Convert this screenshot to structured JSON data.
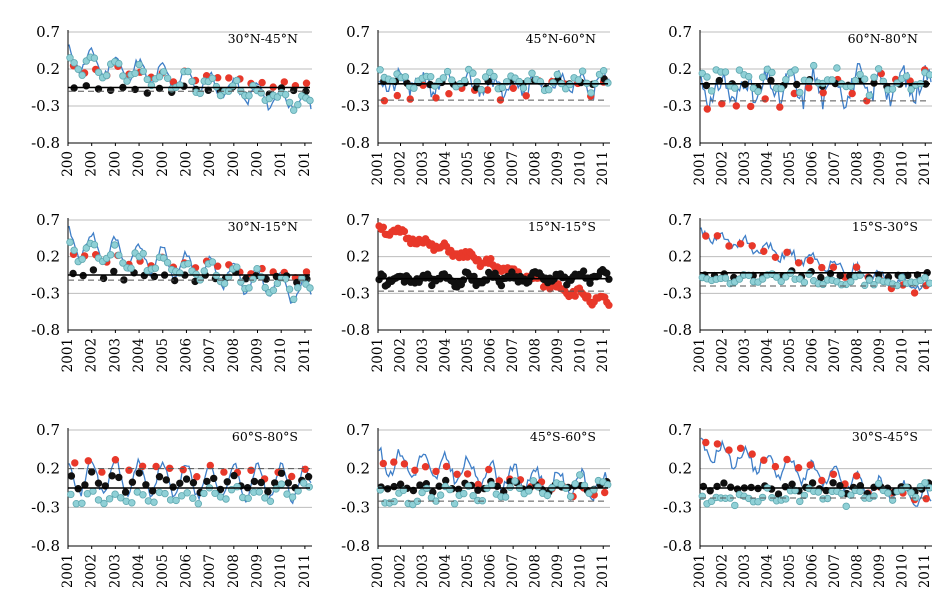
{
  "figure": {
    "title": ""
  },
  "colors": {
    "gridline": "#bdbdbd",
    "axis": "#000000",
    "line_series": "#3f7fc8",
    "red_points": "#e8382a",
    "black_points": "#111111",
    "cyan_points": "#8fd0d6",
    "black_line": "#000000",
    "dashed_line": "#555555"
  },
  "chart_data": [
    {
      "type": "scatter",
      "title": "30°N-45°N",
      "yticks": [
        "0.7",
        "0.2",
        "-0.3",
        "-0.8"
      ],
      "ylim": [
        -0.8,
        0.7
      ],
      "xticks": [
        "200",
        "200",
        "200",
        "200",
        "200",
        "200",
        "200",
        "200",
        "200",
        "201",
        "201"
      ],
      "xlim": [
        2001,
        2011.3
      ],
      "series": [
        {
          "marker": "line",
          "start": 0.35,
          "end": -0.28,
          "amp": 0.14,
          "noise": 0.06,
          "seed": 11
        },
        {
          "marker": "red",
          "start": 0.22,
          "end": -0.05,
          "amp": 0.05,
          "noise": 0.05,
          "n": 22,
          "seed": 12
        },
        {
          "marker": "black",
          "start": -0.06,
          "end": -0.1,
          "amp": 0.03,
          "noise": 0.04,
          "n": 20,
          "seed": 13
        },
        {
          "marker": "cyan",
          "start": 0.28,
          "end": -0.25,
          "amp": 0.1,
          "noise": 0.06,
          "n": 60,
          "seed": 14
        },
        {
          "marker": "flat",
          "value": -0.05
        },
        {
          "marker": "dash",
          "value": -0.1
        }
      ]
    },
    {
      "type": "scatter",
      "title": "45°N-60°N",
      "yticks": [
        "0.7",
        "0.2",
        "-0.3",
        "-0.8"
      ],
      "ylim": [
        -0.8,
        0.7
      ],
      "xticks": [
        "2001",
        "2002",
        "2003",
        "2004",
        "2005",
        "2006",
        "2007",
        "2008",
        "2009",
        "2010",
        "2011"
      ],
      "xlim": [
        2001,
        2011.3
      ],
      "series": [
        {
          "marker": "line",
          "start": 0.0,
          "end": 0.0,
          "amp": 0.1,
          "noise": 0.12,
          "seed": 21
        },
        {
          "marker": "red",
          "start": -0.15,
          "end": 0.0,
          "amp": 0.08,
          "noise": 0.08,
          "n": 18,
          "seed": 22
        },
        {
          "marker": "black",
          "start": 0.0,
          "end": 0.0,
          "amp": 0.03,
          "noise": 0.04,
          "n": 20,
          "seed": 23
        },
        {
          "marker": "cyan",
          "start": 0.08,
          "end": 0.02,
          "amp": 0.08,
          "noise": 0.08,
          "n": 55,
          "seed": 24
        },
        {
          "marker": "flat",
          "value": 0.0
        },
        {
          "marker": "dash",
          "value": -0.22
        }
      ]
    },
    {
      "type": "scatter",
      "title": "60°N-80°N",
      "yticks": [
        "0.7",
        "0.2",
        "-0.3",
        "-0.8"
      ],
      "ylim": [
        -0.8,
        0.7
      ],
      "xticks": [
        "2001",
        "2002",
        "2003",
        "2004",
        "2005",
        "2006",
        "2007",
        "2008",
        "2009",
        "2010",
        "2011"
      ],
      "xlim": [
        2001,
        2011.3
      ],
      "series": [
        {
          "marker": "line",
          "start": -0.1,
          "end": 0.0,
          "amp": 0.18,
          "noise": 0.16,
          "seed": 31
        },
        {
          "marker": "red",
          "start": -0.3,
          "end": 0.05,
          "amp": 0.1,
          "noise": 0.1,
          "n": 16,
          "seed": 32
        },
        {
          "marker": "black",
          "start": 0.0,
          "end": 0.0,
          "amp": 0.03,
          "noise": 0.04,
          "n": 18,
          "seed": 33
        },
        {
          "marker": "cyan",
          "start": 0.12,
          "end": 0.0,
          "amp": 0.12,
          "noise": 0.1,
          "n": 50,
          "seed": 34
        },
        {
          "marker": "flat",
          "value": 0.0
        },
        {
          "marker": "dash",
          "value": -0.23
        }
      ]
    },
    {
      "type": "scatter",
      "title": "30°N-15°N",
      "yticks": [
        "0.7",
        "0.2",
        "-0.3",
        "-0.8"
      ],
      "ylim": [
        -0.8,
        0.7
      ],
      "xticks": [
        "2001",
        "2002",
        "2003",
        "2004",
        "2005",
        "2006",
        "2007",
        "2008",
        "2009",
        "2010",
        "2011"
      ],
      "xlim": [
        2001,
        2011.3
      ],
      "series": [
        {
          "marker": "line",
          "start": 0.4,
          "end": -0.3,
          "amp": 0.18,
          "noise": 0.05,
          "seed": 41
        },
        {
          "marker": "red",
          "start": 0.2,
          "end": -0.05,
          "amp": 0.06,
          "noise": 0.05,
          "n": 22,
          "seed": 42
        },
        {
          "marker": "black",
          "start": -0.05,
          "end": -0.1,
          "amp": 0.04,
          "noise": 0.04,
          "n": 24,
          "seed": 43
        },
        {
          "marker": "cyan",
          "start": 0.3,
          "end": -0.25,
          "amp": 0.12,
          "noise": 0.06,
          "n": 60,
          "seed": 44
        },
        {
          "marker": "flat",
          "value": -0.05
        },
        {
          "marker": "dash",
          "value": -0.12
        }
      ]
    },
    {
      "type": "scatter",
      "title": "15°N-15°S",
      "yticks": [
        "0.7",
        "0.2",
        "-0.3",
        "-0.8"
      ],
      "ylim": [
        -0.8,
        0.7
      ],
      "xticks": [
        "2001",
        "2002",
        "2003",
        "2004",
        "2005",
        "2006",
        "2007",
        "2008",
        "2009",
        "2010",
        "2011"
      ],
      "xlim": [
        2001,
        2011.3
      ],
      "series": [
        {
          "marker": "red",
          "start": 0.6,
          "end": -0.45,
          "amp": 0.04,
          "noise": 0.05,
          "n": 110,
          "seed": 51
        },
        {
          "marker": "black",
          "start": -0.12,
          "end": -0.08,
          "amp": 0.05,
          "noise": 0.06,
          "n": 110,
          "seed": 52
        },
        {
          "marker": "flat",
          "value": -0.1
        },
        {
          "marker": "dash",
          "value": -0.27
        }
      ]
    },
    {
      "type": "scatter",
      "title": "15°S-30°S",
      "yticks": [
        "0.7",
        "0.2",
        "-0.3",
        "-0.8"
      ],
      "ylim": [
        -0.8,
        0.7
      ],
      "xticks": [
        "2001",
        "2002",
        "2003",
        "2004",
        "2005",
        "2006",
        "2007",
        "2008",
        "2009",
        "2010",
        "2011"
      ],
      "xlim": [
        2001,
        2011.3
      ],
      "series": [
        {
          "marker": "line",
          "start": 0.5,
          "end": -0.25,
          "amp": 0.08,
          "noise": 0.06,
          "seed": 61
        },
        {
          "marker": "red",
          "start": 0.5,
          "end": -0.3,
          "amp": 0.05,
          "noise": 0.05,
          "n": 20,
          "seed": 62
        },
        {
          "marker": "black",
          "start": -0.05,
          "end": -0.05,
          "amp": 0.03,
          "noise": 0.03,
          "n": 24,
          "seed": 63
        },
        {
          "marker": "cyan",
          "start": -0.08,
          "end": -0.15,
          "amp": 0.04,
          "noise": 0.06,
          "n": 50,
          "seed": 64
        },
        {
          "marker": "flat",
          "value": -0.02
        },
        {
          "marker": "dash",
          "value": -0.2
        }
      ]
    },
    {
      "type": "scatter",
      "title": "60°S-80°S",
      "yticks": [
        "0.7",
        "0.2",
        "-0.3",
        "-0.8"
      ],
      "ylim": [
        -0.8,
        0.7
      ],
      "xticks": [
        "2001",
        "2002",
        "2003",
        "2004",
        "2005",
        "2006",
        "2007",
        "2008",
        "2009",
        "2010",
        "2011"
      ],
      "xlim": [
        2001,
        2011.3
      ],
      "series": [
        {
          "marker": "line",
          "start": 0.1,
          "end": 0.0,
          "amp": 0.22,
          "noise": 0.05,
          "seed": 71
        },
        {
          "marker": "red",
          "start": 0.25,
          "end": 0.1,
          "amp": 0.05,
          "noise": 0.05,
          "n": 18,
          "seed": 72
        },
        {
          "marker": "black",
          "start": 0.02,
          "end": 0.0,
          "amp": 0.1,
          "noise": 0.05,
          "n": 36,
          "seed": 73
        },
        {
          "marker": "cyan",
          "start": -0.2,
          "end": -0.1,
          "amp": 0.08,
          "noise": 0.05,
          "n": 44,
          "seed": 74
        },
        {
          "marker": "flat",
          "value": -0.05
        },
        {
          "marker": "dash",
          "value": 0.2
        }
      ]
    },
    {
      "type": "scatter",
      "title": "45°S-60°S",
      "yticks": [
        "0.7",
        "0.2",
        "-0.3",
        "-0.8"
      ],
      "ylim": [
        -0.8,
        0.7
      ],
      "xticks": [
        "2001",
        "2002",
        "2003",
        "2004",
        "2005",
        "2006",
        "2007",
        "2008",
        "2009",
        "2010",
        "2011"
      ],
      "xlim": [
        2001,
        2011.3
      ],
      "series": [
        {
          "marker": "line",
          "start": 0.3,
          "end": -0.05,
          "amp": 0.15,
          "noise": 0.07,
          "seed": 81
        },
        {
          "marker": "red",
          "start": 0.3,
          "end": -0.15,
          "amp": 0.06,
          "noise": 0.06,
          "n": 22,
          "seed": 82
        },
        {
          "marker": "black",
          "start": -0.03,
          "end": -0.03,
          "amp": 0.04,
          "noise": 0.04,
          "n": 36,
          "seed": 83
        },
        {
          "marker": "cyan",
          "start": -0.2,
          "end": 0.0,
          "amp": 0.09,
          "noise": 0.06,
          "n": 50,
          "seed": 84
        },
        {
          "marker": "flat",
          "value": -0.05
        },
        {
          "marker": "dash",
          "value": -0.22
        }
      ]
    },
    {
      "type": "scatter",
      "title": "30°S-45°S",
      "yticks": [
        "0.7",
        "0.2",
        "-0.3",
        "-0.8"
      ],
      "ylim": [
        -0.8,
        0.7
      ],
      "xticks": [
        "2001",
        "2002",
        "2003",
        "2004",
        "2005",
        "2006",
        "2007",
        "2008",
        "2009",
        "2010",
        "2011"
      ],
      "xlim": [
        2001,
        2011.3
      ],
      "series": [
        {
          "marker": "line",
          "start": 0.45,
          "end": -0.2,
          "amp": 0.12,
          "noise": 0.06,
          "seed": 91
        },
        {
          "marker": "red",
          "start": 0.55,
          "end": -0.25,
          "amp": 0.05,
          "noise": 0.05,
          "n": 20,
          "seed": 92
        },
        {
          "marker": "black",
          "start": -0.05,
          "end": -0.05,
          "amp": 0.04,
          "noise": 0.04,
          "n": 34,
          "seed": 93
        },
        {
          "marker": "cyan",
          "start": -0.2,
          "end": -0.1,
          "amp": 0.09,
          "noise": 0.07,
          "n": 50,
          "seed": 94
        },
        {
          "marker": "flat",
          "value": -0.05
        },
        {
          "marker": "dash",
          "value": -0.18
        }
      ]
    }
  ]
}
